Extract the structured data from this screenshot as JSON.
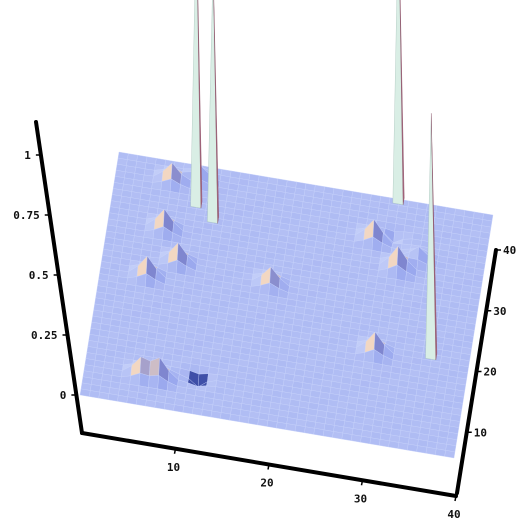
{
  "chart_data": {
    "type": "surface3d",
    "title": "",
    "xlabel": "",
    "ylabel": "",
    "zlabel": "",
    "x_range": [
      0,
      40
    ],
    "y_range": [
      0,
      40
    ],
    "z_range": [
      0,
      1
    ],
    "x_ticks": [
      "10",
      "20",
      "30",
      "40"
    ],
    "y_ticks": [
      "10",
      "20",
      "30",
      "40"
    ],
    "z_ticks": [
      "0",
      "0.25",
      "0.5",
      "0.75",
      "1"
    ],
    "grid": false,
    "base_level": 0,
    "surface_color": "#a9b7f2",
    "mesh_color": "#c7d3fb",
    "spike_color": "#a8687f",
    "spike_light_color": "#d9eee5",
    "bump_color": "#f2d7c2",
    "peaks": [
      {
        "x": 9,
        "y": 33,
        "z": 1.22
      },
      {
        "x": 11,
        "y": 31,
        "z": 1.08
      },
      {
        "x": 30,
        "y": 39,
        "z": 1.23
      },
      {
        "x": 36,
        "y": 15,
        "z": 1.03
      }
    ],
    "bumps": [
      {
        "x": 6,
        "y": 5,
        "z": 0.07
      },
      {
        "x": 8,
        "y": 5,
        "z": 0.08
      },
      {
        "x": 5,
        "y": 21,
        "z": 0.08
      },
      {
        "x": 8,
        "y": 24,
        "z": 0.08
      },
      {
        "x": 6,
        "y": 29,
        "z": 0.08
      },
      {
        "x": 6,
        "y": 37,
        "z": 0.07
      },
      {
        "x": 9,
        "y": 38,
        "z": 0.05
      },
      {
        "x": 18,
        "y": 23,
        "z": 0.07
      },
      {
        "x": 28,
        "y": 33,
        "z": 0.08
      },
      {
        "x": 31,
        "y": 29,
        "z": 0.09
      },
      {
        "x": 33,
        "y": 31,
        "z": 0.05
      },
      {
        "x": 30,
        "y": 15,
        "z": 0.08
      }
    ],
    "dips": [
      {
        "x": 12,
        "y": 6,
        "z": -0.04
      },
      {
        "x": 30,
        "y": 34,
        "z": -0.03
      }
    ]
  }
}
